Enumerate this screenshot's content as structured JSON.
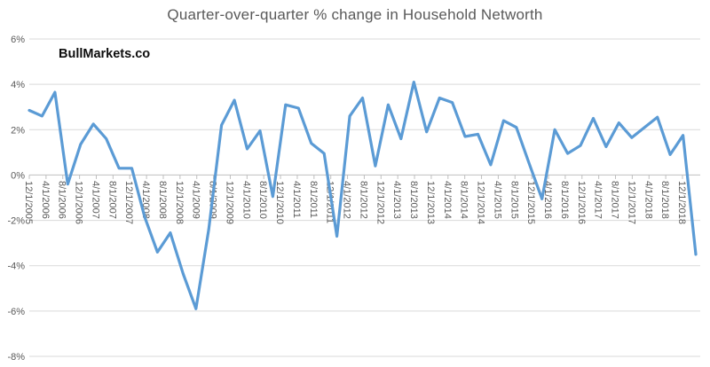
{
  "chart": {
    "title": "Quarter-over-quarter % change in Household Networth",
    "watermark": "BullMarkets.co",
    "colors": {
      "line": "#5B9BD5",
      "gridline": "#D9D9D9",
      "axis": "#BFBFBF",
      "tick_label": "#595959",
      "title": "#595959",
      "watermark": "#0D0D0D",
      "background": "#FFFFFF"
    }
  },
  "chart_data": {
    "type": "line",
    "title": "Quarter-over-quarter % change in Household Networth",
    "x": [
      "12/1/2005",
      "3/1/2006",
      "6/1/2006",
      "9/1/2006",
      "12/1/2006",
      "3/1/2007",
      "6/1/2007",
      "9/1/2007",
      "12/1/2007",
      "3/1/2008",
      "6/1/2008",
      "9/1/2008",
      "12/1/2008",
      "3/1/2009",
      "6/1/2009",
      "9/1/2009",
      "12/1/2009",
      "3/1/2010",
      "6/1/2010",
      "9/1/2010",
      "12/1/2010",
      "3/1/2011",
      "6/1/2011",
      "9/1/2011",
      "12/1/2011",
      "3/1/2012",
      "6/1/2012",
      "9/1/2012",
      "12/1/2012",
      "3/1/2013",
      "6/1/2013",
      "9/1/2013",
      "12/1/2013",
      "3/1/2014",
      "6/1/2014",
      "9/1/2014",
      "12/1/2014",
      "3/1/2015",
      "6/1/2015",
      "9/1/2015",
      "12/1/2015",
      "3/1/2016",
      "6/1/2016",
      "9/1/2016",
      "12/1/2016",
      "3/1/2017",
      "6/1/2017",
      "9/1/2017",
      "12/1/2017",
      "3/1/2018",
      "6/1/2018",
      "9/1/2018",
      "12/1/2018"
    ],
    "values": [
      2.85,
      2.6,
      3.65,
      -0.4,
      1.35,
      2.25,
      1.6,
      0.3,
      0.3,
      -1.85,
      -3.4,
      -2.55,
      -4.35,
      -5.9,
      -2.4,
      2.2,
      3.3,
      1.15,
      1.95,
      -0.95,
      3.1,
      2.95,
      1.4,
      0.95,
      -2.7,
      2.6,
      3.4,
      0.4,
      3.1,
      1.6,
      4.1,
      1.9,
      3.4,
      3.2,
      1.7,
      1.8,
      0.45,
      2.4,
      2.1,
      0.5,
      -1.05,
      2.0,
      0.95,
      1.3,
      2.5,
      1.25,
      2.3,
      1.65,
      2.1,
      2.55,
      0.9,
      1.75,
      -3.5
    ],
    "x_tick_labels": [
      "12/1/2005",
      "4/1/2006",
      "8/1/2006",
      "12/1/2006",
      "4/1/2007",
      "8/1/2007",
      "12/1/2007",
      "4/1/2008",
      "8/1/2008",
      "12/1/2008",
      "4/1/2009",
      "8/1/2009",
      "12/1/2009",
      "4/1/2010",
      "8/1/2010",
      "12/1/2010",
      "4/1/2011",
      "8/1/2011",
      "12/1/2011",
      "4/1/2012",
      "8/1/2012",
      "12/1/2012",
      "4/1/2013",
      "8/1/2013",
      "12/1/2013",
      "4/1/2014",
      "8/1/2014",
      "12/1/2014",
      "4/1/2015",
      "8/1/2015",
      "12/1/2015",
      "4/1/2016",
      "8/1/2016",
      "12/1/2016",
      "4/1/2017",
      "8/1/2017",
      "12/1/2017",
      "4/1/2018",
      "8/1/2018",
      "12/1/2018"
    ],
    "y_ticks": [
      6,
      4,
      2,
      0,
      -2,
      -4,
      -6,
      -8
    ],
    "y_tick_labels": [
      "6%",
      "4%",
      "2%",
      "0%",
      "-2%",
      "-4%",
      "-6%",
      "-8%"
    ],
    "ylim": [
      -8,
      6
    ],
    "xlabel": "",
    "ylabel": "",
    "grid": "horizontal",
    "legend": "none"
  }
}
